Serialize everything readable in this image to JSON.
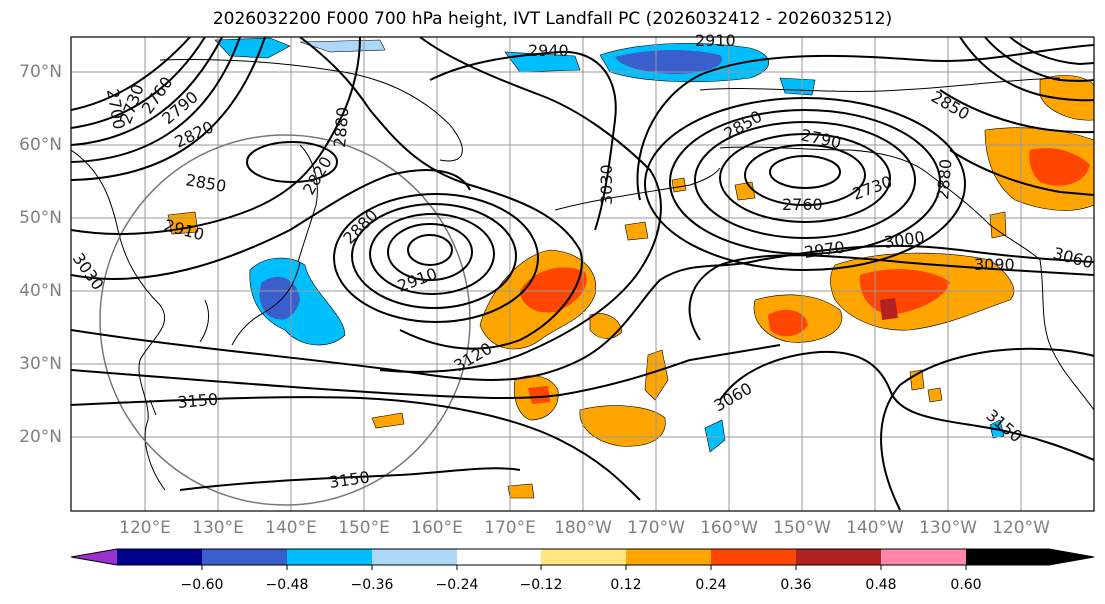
{
  "title": "2026032200 F000 700 hPa height, IVT Landfall PC (2026032412 - 2026032512)",
  "lat_labels": [
    "70°N",
    "60°N",
    "50°N",
    "40°N",
    "30°N",
    "20°N"
  ],
  "lon_labels": [
    "120°E",
    "130°E",
    "140°E",
    "150°E",
    "160°E",
    "170°E",
    "180°W",
    "170°W",
    "160°W",
    "150°W",
    "140°W",
    "130°W",
    "120°W"
  ],
  "colorbar": {
    "tick_labels": [
      "−0.60",
      "−0.48",
      "−0.36",
      "−0.24",
      "−0.12",
      "0.12",
      "0.24",
      "0.36",
      "0.48",
      "0.60"
    ],
    "colors": [
      "#9932CC",
      "#00008B",
      "#3A5FCD",
      "#00BFFF",
      "#ADD8F7",
      "#FFFFFF",
      "#FFE680",
      "#FFA500",
      "#FF4500",
      "#B22222",
      "#FF88AA"
    ]
  },
  "contour_labels": [
    "2700",
    "2730",
    "2760",
    "2790",
    "2820",
    "2850",
    "2910",
    "3030",
    "2880",
    "2820",
    "2940",
    "2910",
    "3030",
    "2850",
    "2790",
    "2730",
    "2760",
    "2880",
    "2910",
    "2970",
    "3000",
    "3090",
    "3060",
    "3120",
    "3150",
    "3150",
    "3060",
    "3150",
    "2850",
    "2880"
  ]
}
